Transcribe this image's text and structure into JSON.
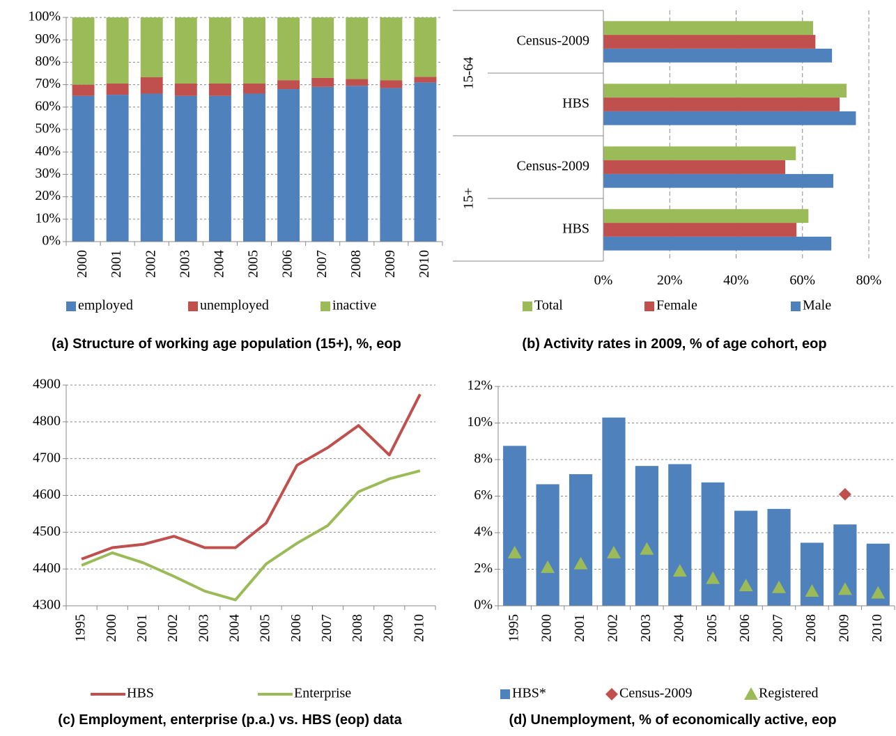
{
  "chart_data": [
    {
      "type": "bar",
      "stacked": true,
      "title": "(a) Structure of working age population (15+), %, eop",
      "categories": [
        "2000",
        "2001",
        "2002",
        "2003",
        "2004",
        "2005",
        "2006",
        "2007",
        "2008",
        "2009",
        "2010"
      ],
      "series": [
        {
          "name": "employed",
          "color": "#4f81bd",
          "values": [
            65,
            65.5,
            66,
            65,
            65,
            66,
            68,
            69,
            69.5,
            68.5,
            71
          ]
        },
        {
          "name": "unemployed",
          "color": "#c0504d",
          "values": [
            5,
            5,
            7.3,
            5.5,
            5.5,
            4.5,
            4,
            4,
            3,
            3.5,
            2.5
          ]
        },
        {
          "name": "inactive",
          "color": "#9bbb59",
          "values": [
            30,
            29.5,
            26.7,
            29.5,
            29.5,
            29.5,
            28,
            27,
            27.5,
            28,
            26.5
          ]
        }
      ],
      "ylim": [
        0,
        100
      ],
      "yticks": [
        {
          "value": 0,
          "label": "0%"
        },
        {
          "value": 10,
          "label": "10%"
        },
        {
          "value": 20,
          "label": "20%"
        },
        {
          "value": 30,
          "label": "30%"
        },
        {
          "value": 40,
          "label": "40%"
        },
        {
          "value": 50,
          "label": "50%"
        },
        {
          "value": 60,
          "label": "60%"
        },
        {
          "value": 70,
          "label": "70%"
        },
        {
          "value": 80,
          "label": "80%"
        },
        {
          "value": 90,
          "label": "90%"
        },
        {
          "value": 100,
          "label": "100%"
        }
      ],
      "grid": true
    },
    {
      "type": "bar",
      "orientation": "horizontal",
      "title": "(b) Activity rates in 2009, % of age cohort, eop",
      "groups": [
        {
          "name": "15-64",
          "categories": [
            "Census-2009",
            "HBS"
          ]
        },
        {
          "name": "15+",
          "categories": [
            "Census-2009",
            "HBS"
          ]
        }
      ],
      "series": [
        {
          "name": "Total",
          "color": "#9bbb59",
          "values": [
            63.2,
            73.3,
            58,
            61.8
          ]
        },
        {
          "name": "Female",
          "color": "#c0504d",
          "values": [
            63.9,
            71.2,
            54.8,
            58.2
          ]
        },
        {
          "name": "Male",
          "color": "#4f81bd",
          "values": [
            68.9,
            76.1,
            69.3,
            68.7
          ]
        }
      ],
      "xlim": [
        0,
        80
      ],
      "xticks": [
        {
          "value": 0,
          "label": "0%"
        },
        {
          "value": 20,
          "label": "20%"
        },
        {
          "value": 40,
          "label": "40%"
        },
        {
          "value": 60,
          "label": "60%"
        },
        {
          "value": 80,
          "label": "80%"
        }
      ],
      "grid": true
    },
    {
      "type": "line",
      "title": "(c) Employment, enterprise (p.a.) vs. HBS (eop) data",
      "categories": [
        "1995",
        "2000",
        "2001",
        "2002",
        "2003",
        "2004",
        "2005",
        "2006",
        "2007",
        "2008",
        "2009",
        "2010"
      ],
      "series": [
        {
          "name": "HBS",
          "color": "#c0504d",
          "values": [
            4427,
            4458,
            4467,
            4489,
            4458,
            4458,
            4525,
            4682,
            4730,
            4790,
            4710,
            4875
          ]
        },
        {
          "name": "Enterprise",
          "color": "#9bbb59",
          "values": [
            4410,
            4444,
            4417,
            4380,
            4340,
            4316,
            4414,
            4470,
            4518,
            4610,
            4645,
            4667
          ]
        }
      ],
      "ylim": [
        4300,
        4900
      ],
      "yticks": [
        4300,
        4400,
        4500,
        4600,
        4700,
        4800,
        4900
      ],
      "grid": true
    },
    {
      "type": "combo",
      "title": "(d) Unemployment, % of economically active, eop",
      "categories": [
        "1995",
        "2000",
        "2001",
        "2002",
        "2003",
        "2004",
        "2005",
        "2006",
        "2007",
        "2008",
        "2009",
        "2010"
      ],
      "series": [
        {
          "name": "HBS*",
          "type": "bar",
          "color": "#4f81bd",
          "values": [
            8.75,
            6.65,
            7.2,
            10.3,
            7.65,
            7.75,
            6.75,
            5.2,
            5.3,
            3.45,
            4.45,
            3.4
          ]
        },
        {
          "name": "Census-2009",
          "type": "diamond",
          "color": "#c0504d",
          "values": [
            null,
            null,
            null,
            null,
            null,
            null,
            null,
            null,
            null,
            null,
            6.1,
            null
          ]
        },
        {
          "name": "Registered",
          "type": "triangle",
          "color": "#9bbb59",
          "values": [
            2.9,
            2.1,
            2.3,
            2.9,
            3.1,
            1.9,
            1.5,
            1.1,
            1.0,
            0.8,
            0.9,
            0.7
          ]
        }
      ],
      "ylim": [
        0,
        12
      ],
      "yticks": [
        {
          "value": 0,
          "label": "0%"
        },
        {
          "value": 2,
          "label": "2%"
        },
        {
          "value": 4,
          "label": "4%"
        },
        {
          "value": 6,
          "label": "6%"
        },
        {
          "value": 8,
          "label": "8%"
        },
        {
          "value": 10,
          "label": "10%"
        },
        {
          "value": 12,
          "label": "12%"
        }
      ],
      "grid": true
    }
  ]
}
